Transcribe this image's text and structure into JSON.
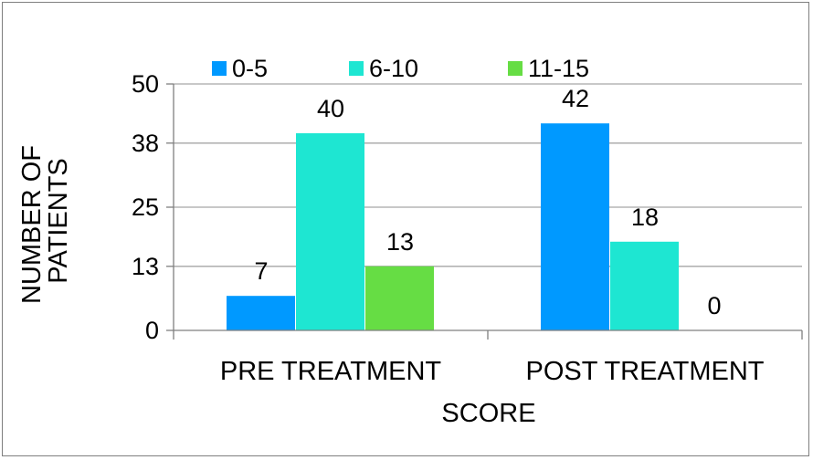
{
  "chart_data": {
    "type": "bar",
    "categories": [
      "PRE TREATMENT",
      "POST TREATMENT"
    ],
    "series": [
      {
        "name": "0-5",
        "values": [
          7,
          42
        ],
        "color": "#0099ff"
      },
      {
        "name": "6-10",
        "values": [
          40,
          18
        ],
        "color": "#1ee6d2"
      },
      {
        "name": "11-15",
        "values": [
          13,
          0
        ],
        "color": "#66dd44"
      }
    ],
    "yticks": [
      0,
      13,
      25,
      38,
      50
    ],
    "ylim": [
      0,
      50
    ],
    "xlabel": "SCORE",
    "ylabel_lines": [
      "NUMBER OF",
      "PATIENTS"
    ],
    "grid": true,
    "legend_position": "top"
  }
}
